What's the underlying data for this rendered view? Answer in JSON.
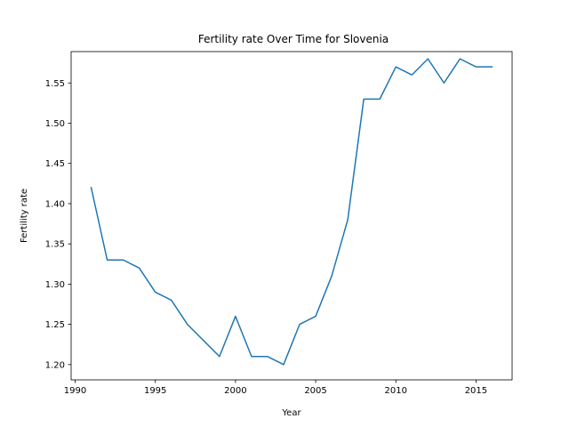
{
  "chart_data": {
    "type": "line",
    "title": "Fertility rate Over Time for Slovenia",
    "xlabel": "Year",
    "ylabel": "Fertility rate",
    "xlim": [
      1989.75,
      2017.25
    ],
    "ylim": [
      1.181,
      1.589
    ],
    "xticks": [
      1990,
      1995,
      2000,
      2005,
      2010,
      2015
    ],
    "yticks": [
      1.2,
      1.25,
      1.3,
      1.35,
      1.4,
      1.45,
      1.5,
      1.55
    ],
    "grid": false,
    "line_color": "#1f77b4",
    "series": [
      {
        "x": [
          1991,
          1992,
          1993,
          1994,
          1995,
          1996,
          1997,
          1998,
          1999,
          2000,
          2001,
          2002,
          2003,
          2004,
          2005,
          2006,
          2007,
          2008,
          2009,
          2010,
          2011,
          2012,
          2013,
          2014,
          2015,
          2016
        ],
        "values": [
          1.42,
          1.33,
          1.33,
          1.32,
          1.29,
          1.28,
          1.25,
          1.23,
          1.21,
          1.26,
          1.21,
          1.21,
          1.2,
          1.25,
          1.26,
          1.31,
          1.38,
          1.53,
          1.53,
          1.57,
          1.56,
          1.58,
          1.55,
          1.58,
          1.57,
          1.57
        ]
      }
    ]
  }
}
